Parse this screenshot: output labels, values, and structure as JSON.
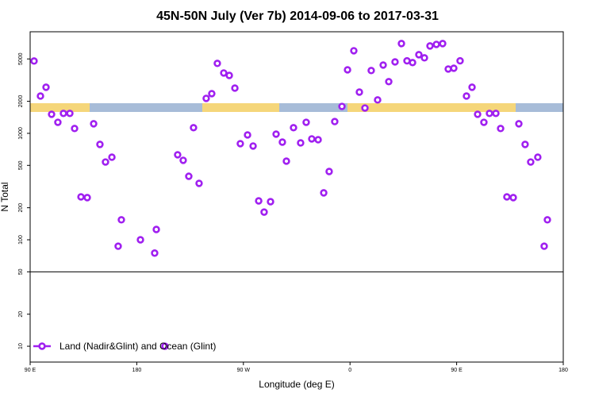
{
  "chart_data": {
    "type": "scatter",
    "title": "45N-50N July (Ver 7b)   2014-09-06 to 2017-03-31",
    "x_label": "Longitude (deg E)",
    "y_label": "N Total",
    "log_y": true,
    "color": "#a020f0",
    "legend_position": "bottom-left",
    "reference_line": 50,
    "xlim": [
      90,
      540
    ],
    "xticks": [
      {
        "value": 90,
        "label": "90 E"
      },
      {
        "value": 180,
        "label": "180"
      },
      {
        "value": 270,
        "label": "90 W"
      },
      {
        "value": 360,
        "label": "0"
      },
      {
        "value": 450,
        "label": "90 E"
      },
      {
        "value": 540,
        "label": "180"
      }
    ],
    "ylim": [
      7.1,
      9000
    ],
    "yticks": [
      10,
      20,
      50,
      100,
      200,
      500,
      1000,
      2000,
      5000
    ],
    "series": [
      {
        "name": "Land (Nadir&Glint) and Ocean (Glint)",
        "color": "#a020f0",
        "x": [
          93.3,
          98.7,
          103.4,
          108.1,
          113.4,
          118.1,
          123.5,
          127.5,
          132.9,
          138.2,
          143.6,
          148.9,
          153.6,
          159.0,
          164.3,
          167.0,
          183.1,
          195.1,
          196.5,
          203.8,
          214.5,
          219.2,
          223.9,
          227.9,
          232.6,
          238.6,
          243.3,
          248.0,
          253.4,
          258.1,
          262.8,
          267.4,
          273.5,
          278.2,
          282.9,
          287.5,
          292.9,
          297.6,
          302.9,
          306.3,
          312.3,
          318.3,
          323.0,
          327.7,
          333.1,
          337.8,
          342.4,
          347.1,
          353.2,
          357.9,
          363.2,
          367.9,
          372.6,
          377.9,
          383.3,
          388.0,
          392.7,
          398.0,
          403.4,
          408.1,
          412.8,
          418.1,
          422.8,
          427.5,
          432.9,
          438.2,
          442.9,
          447.6,
          452.9,
          458.3,
          463.0,
          467.7,
          473.0,
          477.7,
          483.1,
          487.1,
          492.4,
          497.8,
          502.5,
          507.8,
          512.5,
          518.5,
          523.9,
          526.6
        ],
        "values": [
          4780,
          2240,
          2710,
          1510,
          1270,
          1540,
          1540,
          1110,
          253,
          249,
          1230,
          787,
          538,
          597,
          87,
          154,
          100,
          75,
          125,
          10,
          629,
          558,
          395,
          1130,
          339,
          2130,
          2360,
          4540,
          3690,
          3500,
          2660,
          800,
          966,
          760,
          232,
          182,
          228,
          983,
          827,
          548,
          1130,
          813,
          1270,
          887,
          871,
          276,
          438,
          1290,
          1790,
          3950,
          5970,
          2440,
          1730,
          3890,
          2060,
          4380,
          3060,
          4690,
          6970,
          4800,
          4620,
          5480,
          5120,
          6620,
          6850,
          6970,
          4020,
          4090,
          4800,
          2240,
          2710,
          1510,
          1270,
          1540,
          1540,
          1110,
          253,
          249,
          1230,
          787,
          538,
          597,
          87,
          154
        ]
      }
    ]
  }
}
